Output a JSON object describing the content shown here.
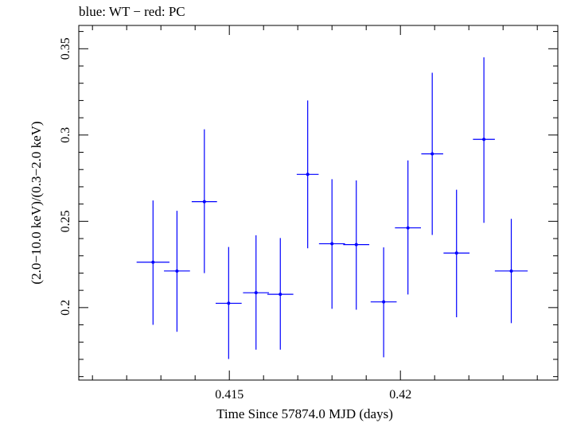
{
  "chart_data": {
    "type": "scatter",
    "title": "blue: WT − red: PC",
    "xlabel": "Time Since 57874.0 MJD (days)",
    "ylabel": "(2.0−10.0 keV)/(0.3−2.0 keV)",
    "xlim": [
      0.4106,
      0.4246
    ],
    "ylim": [
      0.158,
      0.3635
    ],
    "grid": false,
    "x_major_ticks": [
      0.415,
      0.42
    ],
    "x_tick_labels": [
      "0.415",
      "0.42"
    ],
    "x_minor_step": 0.001,
    "y_major_ticks": [
      0.2,
      0.25,
      0.3,
      0.35
    ],
    "y_tick_labels": [
      "0.2",
      "0.25",
      "0.3",
      "0.35"
    ],
    "y_minor_step": 0.01,
    "series": [
      {
        "color": "#0000ff",
        "points": [
          {
            "x": 0.41277,
            "xerr": 0.00048,
            "y": 0.2263,
            "yerr_lo": 0.0363,
            "yerr_hi": 0.0358
          },
          {
            "x": 0.41347,
            "xerr": 0.00038,
            "y": 0.2212,
            "yerr_lo": 0.0352,
            "yerr_hi": 0.0349
          },
          {
            "x": 0.41427,
            "xerr": 0.00037,
            "y": 0.2614,
            "yerr_lo": 0.0414,
            "yerr_hi": 0.0419
          },
          {
            "x": 0.41498,
            "xerr": 0.00038,
            "y": 0.2025,
            "yerr_lo": 0.0323,
            "yerr_hi": 0.0326
          },
          {
            "x": 0.41578,
            "xerr": 0.00038,
            "y": 0.2086,
            "yerr_lo": 0.033,
            "yerr_hi": 0.0333
          },
          {
            "x": 0.41649,
            "xerr": 0.00038,
            "y": 0.2077,
            "yerr_lo": 0.0321,
            "yerr_hi": 0.0326
          },
          {
            "x": 0.41729,
            "xerr": 0.00032,
            "y": 0.2772,
            "yerr_lo": 0.0428,
            "yerr_hi": 0.0428
          },
          {
            "x": 0.418,
            "xerr": 0.00038,
            "y": 0.237,
            "yerr_lo": 0.0377,
            "yerr_hi": 0.0374
          },
          {
            "x": 0.41871,
            "xerr": 0.00038,
            "y": 0.2365,
            "yerr_lo": 0.0377,
            "yerr_hi": 0.0372
          },
          {
            "x": 0.41951,
            "xerr": 0.00038,
            "y": 0.2033,
            "yerr_lo": 0.0321,
            "yerr_hi": 0.0316
          },
          {
            "x": 0.42022,
            "xerr": 0.00038,
            "y": 0.2462,
            "yerr_lo": 0.0386,
            "yerr_hi": 0.0391
          },
          {
            "x": 0.42093,
            "xerr": 0.00032,
            "y": 0.2891,
            "yerr_lo": 0.047,
            "yerr_hi": 0.047
          },
          {
            "x": 0.42164,
            "xerr": 0.00038,
            "y": 0.2316,
            "yerr_lo": 0.0372,
            "yerr_hi": 0.0367
          },
          {
            "x": 0.42244,
            "xerr": 0.00032,
            "y": 0.2975,
            "yerr_lo": 0.0484,
            "yerr_hi": 0.0475
          },
          {
            "x": 0.42324,
            "xerr": 0.00048,
            "y": 0.2212,
            "yerr_lo": 0.0302,
            "yerr_hi": 0.0302
          }
        ]
      }
    ]
  }
}
